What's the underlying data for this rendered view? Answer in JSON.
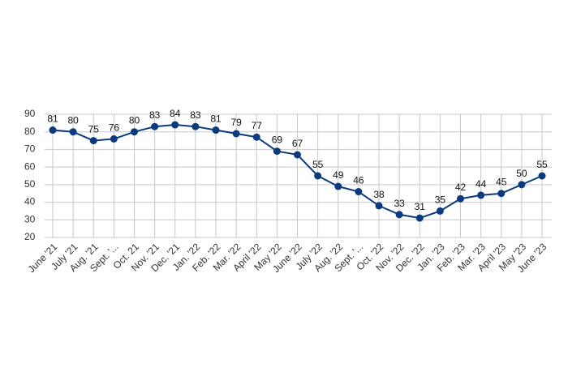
{
  "chart_data": {
    "type": "line",
    "categories": [
      "June '21",
      "July '21",
      "Aug. '21",
      "Sept. '...",
      "Oct. 21",
      "Nov. '21",
      "Dec. '21",
      "Jan. '22",
      "Feb. '22",
      "Mar. '22",
      "April '22",
      "May '22",
      "June '22",
      "July '22",
      "Aug. '22",
      "Sept. '...",
      "Oct. '22",
      "Nov. '22",
      "Dec. '22",
      "Jan. '23",
      "Feb. '23",
      "Mar. '23",
      "April '23",
      "May '23",
      "June '23"
    ],
    "values": [
      81,
      80,
      75,
      76,
      80,
      83,
      84,
      83,
      81,
      79,
      77,
      69,
      67,
      55,
      49,
      46,
      38,
      33,
      31,
      35,
      42,
      44,
      45,
      50,
      55
    ],
    "color": "#0b3a7e",
    "ylim": [
      20,
      90
    ],
    "yticks": [
      20,
      30,
      40,
      50,
      60,
      70,
      80,
      90
    ],
    "grid": true
  }
}
